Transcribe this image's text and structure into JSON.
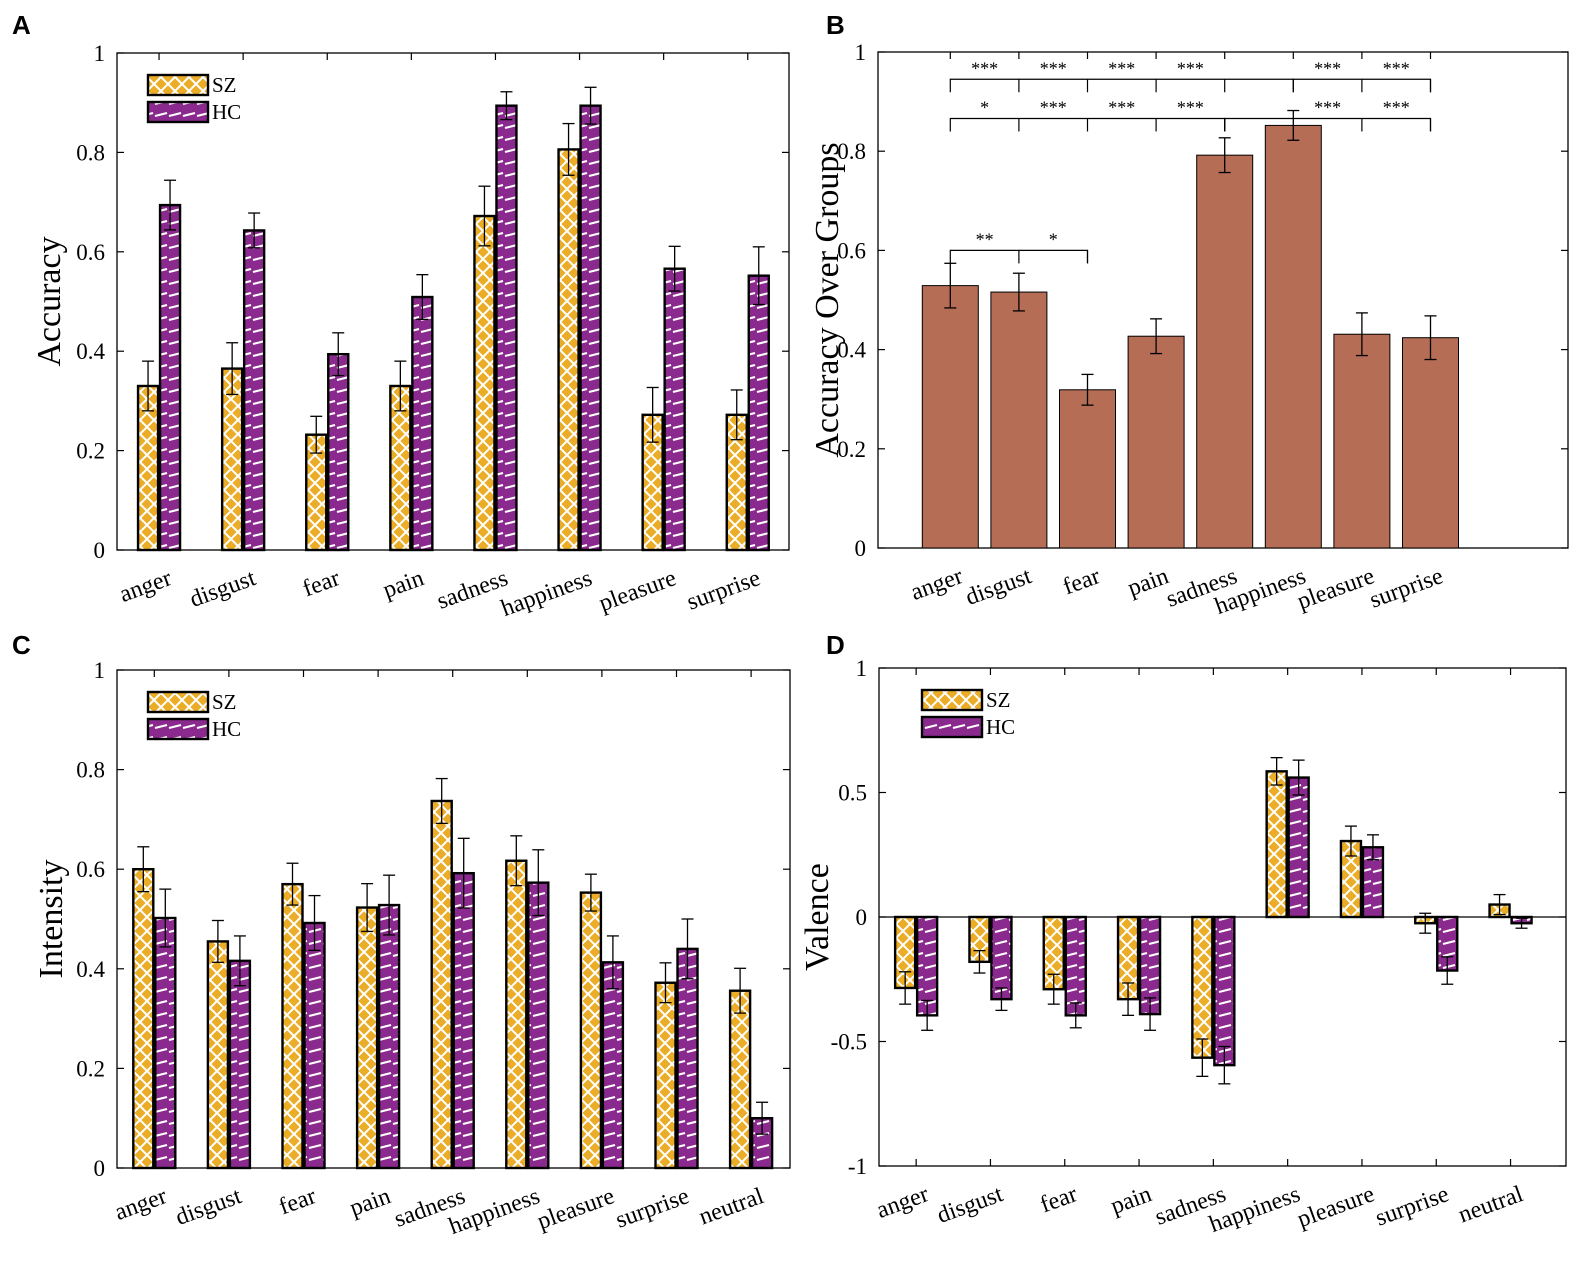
{
  "colors": {
    "sz": "#EBAD27",
    "hc": "#8B2A8E",
    "avg": "#B56D56",
    "pattern_line": "#ffffff",
    "axis": "#000000"
  },
  "legend": {
    "sz": "SZ",
    "hc": "HC"
  },
  "chart_data": [
    {
      "panel": "A",
      "type": "bar",
      "ylabel": "Accuracy",
      "xlabel": "",
      "ylim": [
        0,
        1
      ],
      "yticks": [
        0,
        0.2,
        0.4,
        0.6,
        0.8,
        1
      ],
      "ytick_labels": [
        "0",
        "0.2",
        "0.4",
        "0.6",
        "0.8",
        "1"
      ],
      "legend_position": "top-left",
      "categories": [
        "anger",
        "disgust",
        "fear",
        "pain",
        "sadness",
        "happiness",
        "pleasure",
        "surprise"
      ],
      "series": [
        {
          "name": "SZ",
          "values": [
            0.33,
            0.365,
            0.232,
            0.33,
            0.672,
            0.806,
            0.272,
            0.272
          ],
          "errors": [
            0.05,
            0.052,
            0.037,
            0.05,
            0.06,
            0.052,
            0.055,
            0.05
          ]
        },
        {
          "name": "HC",
          "values": [
            0.694,
            0.643,
            0.394,
            0.509,
            0.894,
            0.894,
            0.566,
            0.552
          ],
          "errors": [
            0.05,
            0.035,
            0.043,
            0.045,
            0.028,
            0.037,
            0.045,
            0.058
          ]
        }
      ]
    },
    {
      "panel": "B",
      "type": "bar",
      "ylabel": "Accuracy Over Groups",
      "xlabel": "",
      "ylim": [
        0,
        1
      ],
      "yticks": [
        0,
        0.2,
        0.4,
        0.6,
        0.8,
        1
      ],
      "ytick_labels": [
        "0",
        "0.2",
        "0.4",
        "0.6",
        "0.8",
        "1"
      ],
      "categories": [
        "anger",
        "disgust",
        "fear",
        "pain",
        "sadness",
        "happiness",
        "pleasure",
        "surprise"
      ],
      "series": [
        {
          "name": "Accuracy Over Groups",
          "values": [
            0.529,
            0.516,
            0.319,
            0.427,
            0.792,
            0.852,
            0.431,
            0.424
          ],
          "errors": [
            0.045,
            0.038,
            0.031,
            0.035,
            0.035,
            0.03,
            0.043,
            0.044
          ]
        }
      ],
      "significance": [
        {
          "y": 0.945,
          "from": 0,
          "to": 5,
          "labels": [
            {
              "between": [
                0,
                1
              ],
              "text": "***"
            },
            {
              "between": [
                1,
                2
              ],
              "text": "***"
            },
            {
              "between": [
                2,
                3
              ],
              "text": "***"
            },
            {
              "between": [
                3,
                4
              ],
              "text": "***"
            }
          ]
        },
        {
          "y": 0.945,
          "from": 5,
          "to": 7,
          "labels": [
            {
              "between": [
                5,
                6
              ],
              "text": "***"
            },
            {
              "between": [
                6,
                7
              ],
              "text": "***"
            }
          ]
        },
        {
          "y": 0.866,
          "from": 0,
          "to": 4,
          "labels": [
            {
              "between": [
                0,
                1
              ],
              "text": "*"
            },
            {
              "between": [
                1,
                2
              ],
              "text": "***"
            },
            {
              "between": [
                2,
                3
              ],
              "text": "***"
            },
            {
              "between": [
                3,
                4
              ],
              "text": "***"
            }
          ]
        },
        {
          "y": 0.866,
          "from": 4,
          "to": 7,
          "labels": [
            {
              "between": [
                5,
                6
              ],
              "text": "***"
            },
            {
              "between": [
                6,
                7
              ],
              "text": "***"
            }
          ]
        },
        {
          "y": 0.6,
          "from": 0,
          "to": 2,
          "labels": [
            {
              "between": [
                0,
                1
              ],
              "text": "**"
            },
            {
              "between": [
                1,
                2
              ],
              "text": "*"
            }
          ]
        }
      ]
    },
    {
      "panel": "C",
      "type": "bar",
      "ylabel": "Intensity",
      "xlabel": "",
      "ylim": [
        0,
        1
      ],
      "yticks": [
        0,
        0.2,
        0.4,
        0.6,
        0.8,
        1
      ],
      "ytick_labels": [
        "0",
        "0.2",
        "0.4",
        "0.6",
        "0.8",
        "1"
      ],
      "legend_position": "top-left",
      "categories": [
        "anger",
        "disgust",
        "fear",
        "pain",
        "sadness",
        "happiness",
        "pleasure",
        "surprise",
        "neutral"
      ],
      "series": [
        {
          "name": "SZ",
          "values": [
            0.6,
            0.455,
            0.57,
            0.523,
            0.737,
            0.617,
            0.553,
            0.372,
            0.356
          ],
          "errors": [
            0.045,
            0.042,
            0.042,
            0.048,
            0.045,
            0.05,
            0.037,
            0.04,
            0.045
          ]
        },
        {
          "name": "HC",
          "values": [
            0.502,
            0.416,
            0.492,
            0.528,
            0.592,
            0.573,
            0.413,
            0.44,
            0.1
          ],
          "errors": [
            0.058,
            0.05,
            0.055,
            0.06,
            0.07,
            0.066,
            0.053,
            0.06,
            0.032
          ]
        }
      ]
    },
    {
      "panel": "D",
      "type": "bar",
      "ylabel": "Valence",
      "xlabel": "",
      "ylim": [
        -1,
        1
      ],
      "yticks": [
        -1,
        -0.5,
        0,
        0.5,
        1
      ],
      "ytick_labels": [
        "-1",
        "-0.5",
        "0",
        "0.5",
        "1"
      ],
      "zero_line": true,
      "legend_position": "top-left",
      "categories": [
        "anger",
        "disgust",
        "fear",
        "pain",
        "sadness",
        "happiness",
        "pleasure",
        "surprise",
        "neutral"
      ],
      "series": [
        {
          "name": "SZ",
          "values": [
            -0.285,
            -0.18,
            -0.29,
            -0.33,
            -0.565,
            0.585,
            0.305,
            -0.025,
            0.05
          ],
          "errors": [
            0.065,
            0.045,
            0.06,
            0.065,
            0.075,
            0.055,
            0.06,
            0.04,
            0.04
          ]
        },
        {
          "name": "HC",
          "values": [
            -0.395,
            -0.33,
            -0.395,
            -0.39,
            -0.595,
            0.56,
            0.28,
            -0.215,
            -0.025
          ],
          "errors": [
            0.06,
            0.045,
            0.05,
            0.065,
            0.075,
            0.07,
            0.05,
            0.055,
            0.02
          ]
        }
      ]
    }
  ]
}
